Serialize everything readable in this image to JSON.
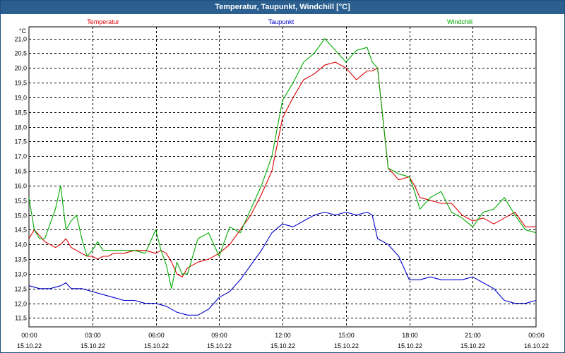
{
  "window": {
    "title": "Temperatur, Taupunkt, Windchill [°C]"
  },
  "chart_data": {
    "type": "line",
    "title": "Temperatur, Taupunkt, Windchill [°C]",
    "ylabel": "°C",
    "xlabel": "",
    "ylim": [
      11.2,
      21.4
    ],
    "xlim": [
      0,
      24
    ],
    "grid": true,
    "yticks": [
      "21,0",
      "20,5",
      "20,0",
      "19,5",
      "19,0",
      "18,5",
      "18,0",
      "17,5",
      "17,0",
      "16,5",
      "16,0",
      "15,5",
      "15,0",
      "14,5",
      "14,0",
      "13,5",
      "13,0",
      "12,5",
      "12,0",
      "11,5"
    ],
    "ytick_values": [
      21.0,
      20.5,
      20.0,
      19.5,
      19.0,
      18.5,
      18.0,
      17.5,
      17.0,
      16.5,
      16.0,
      15.5,
      15.0,
      14.5,
      14.0,
      13.5,
      13.0,
      12.5,
      12.0,
      11.5
    ],
    "xticks": [
      {
        "hour": 0,
        "time": "00:00",
        "date": "15.10.22"
      },
      {
        "hour": 3,
        "time": "03:00",
        "date": "15.10.22"
      },
      {
        "hour": 6,
        "time": "06:00",
        "date": "15.10.22"
      },
      {
        "hour": 9,
        "time": "09:00",
        "date": "15.10.22"
      },
      {
        "hour": 12,
        "time": "12:00",
        "date": "15.10.22"
      },
      {
        "hour": 15,
        "time": "15:00",
        "date": "15.10.22"
      },
      {
        "hour": 18,
        "time": "18:00",
        "date": "15.10.22"
      },
      {
        "hour": 21,
        "time": "21:00",
        "date": "15.10.22"
      },
      {
        "hour": 24,
        "time": "00:00",
        "date": "16.10.22"
      }
    ],
    "series": [
      {
        "name": "Temperatur",
        "color": "#dd0000",
        "legend_pos": "left",
        "x": [
          0,
          0.25,
          0.5,
          0.75,
          1,
          1.25,
          1.5,
          1.75,
          2,
          2.25,
          2.5,
          2.75,
          3,
          3.25,
          3.5,
          3.75,
          4,
          4.5,
          5,
          5.5,
          6,
          6.25,
          6.5,
          6.75,
          7,
          7.25,
          7.5,
          8,
          8.5,
          9,
          9.5,
          10,
          10.5,
          11,
          11.5,
          12,
          12.5,
          13,
          13.5,
          14,
          14.5,
          15,
          15.5,
          16,
          16.25,
          16.5,
          17,
          17.5,
          18,
          18.25,
          18.5,
          19,
          19.5,
          20,
          20.5,
          21,
          21.5,
          22,
          22.5,
          23,
          23.5,
          24
        ],
        "values": [
          14.2,
          14.5,
          14.3,
          14.1,
          14.0,
          13.9,
          14.0,
          14.2,
          13.9,
          13.8,
          13.7,
          13.6,
          13.6,
          13.5,
          13.6,
          13.6,
          13.7,
          13.7,
          13.8,
          13.8,
          13.7,
          13.8,
          13.7,
          13.4,
          13.0,
          12.9,
          13.2,
          13.4,
          13.5,
          13.7,
          14.0,
          14.5,
          15.0,
          15.7,
          16.5,
          18.3,
          19.0,
          19.6,
          19.8,
          20.1,
          20.2,
          20.0,
          19.6,
          19.9,
          19.9,
          20.0,
          16.6,
          16.2,
          16.3,
          16.0,
          15.6,
          15.5,
          15.4,
          15.4,
          15.0,
          14.8,
          14.9,
          14.7,
          14.9,
          15.1,
          14.6,
          14.6
        ]
      },
      {
        "name": "Taupunkt",
        "color": "#0000cc",
        "legend_pos": "center",
        "x": [
          0,
          0.5,
          1,
          1.5,
          1.75,
          2,
          2.5,
          3,
          3.5,
          4,
          4.5,
          5,
          5.5,
          6,
          6.5,
          7,
          7.5,
          8,
          8.5,
          9,
          9.5,
          10,
          10.5,
          11,
          11.5,
          12,
          12.5,
          13,
          13.5,
          14,
          14.5,
          15,
          15.5,
          16,
          16.25,
          16.5,
          17,
          17.5,
          18,
          18.5,
          19,
          19.5,
          20,
          20.5,
          21,
          21.5,
          22,
          22.5,
          23,
          23.5,
          24
        ],
        "values": [
          12.6,
          12.5,
          12.5,
          12.6,
          12.7,
          12.5,
          12.5,
          12.4,
          12.3,
          12.2,
          12.1,
          12.1,
          12.0,
          12.0,
          11.9,
          11.7,
          11.6,
          11.6,
          11.8,
          12.2,
          12.4,
          12.8,
          13.3,
          13.8,
          14.4,
          14.7,
          14.6,
          14.8,
          15.0,
          15.1,
          15.0,
          15.1,
          15.0,
          15.1,
          15.0,
          14.2,
          14.0,
          13.6,
          12.8,
          12.8,
          12.9,
          12.8,
          12.8,
          12.8,
          12.9,
          12.7,
          12.5,
          12.1,
          12.0,
          12.0,
          12.1
        ]
      },
      {
        "name": "Windchill",
        "color": "#00aa00",
        "legend_pos": "right",
        "x": [
          0,
          0.25,
          0.5,
          0.75,
          1,
          1.25,
          1.5,
          1.75,
          2,
          2.25,
          2.5,
          2.75,
          3,
          3.25,
          3.5,
          3.75,
          4,
          4.5,
          5,
          5.5,
          6,
          6.25,
          6.5,
          6.75,
          7,
          7.25,
          7.5,
          8,
          8.5,
          9,
          9.5,
          10,
          10.5,
          11,
          11.5,
          12,
          12.5,
          13,
          13.5,
          14,
          14.5,
          15,
          15.5,
          16,
          16.25,
          16.5,
          17,
          17.5,
          18,
          18.25,
          18.5,
          19,
          19.5,
          20,
          20.5,
          21,
          21.5,
          22,
          22.5,
          23,
          23.5,
          24
        ],
        "values": [
          15.6,
          14.5,
          14.2,
          14.2,
          14.7,
          15.2,
          16.0,
          14.5,
          14.8,
          15.0,
          14.2,
          13.6,
          13.8,
          14.1,
          13.8,
          13.8,
          13.8,
          13.8,
          13.8,
          13.7,
          14.5,
          13.8,
          13.3,
          12.5,
          13.4,
          13.0,
          13.0,
          14.2,
          14.4,
          13.6,
          14.6,
          14.4,
          15.2,
          16.0,
          17.0,
          18.9,
          19.5,
          20.2,
          20.5,
          21.0,
          20.6,
          20.2,
          20.6,
          20.7,
          20.2,
          20.0,
          16.6,
          16.4,
          16.3,
          15.8,
          15.2,
          15.6,
          15.8,
          15.1,
          14.9,
          14.6,
          15.1,
          15.2,
          15.6,
          15.0,
          14.5,
          14.4
        ]
      }
    ]
  }
}
